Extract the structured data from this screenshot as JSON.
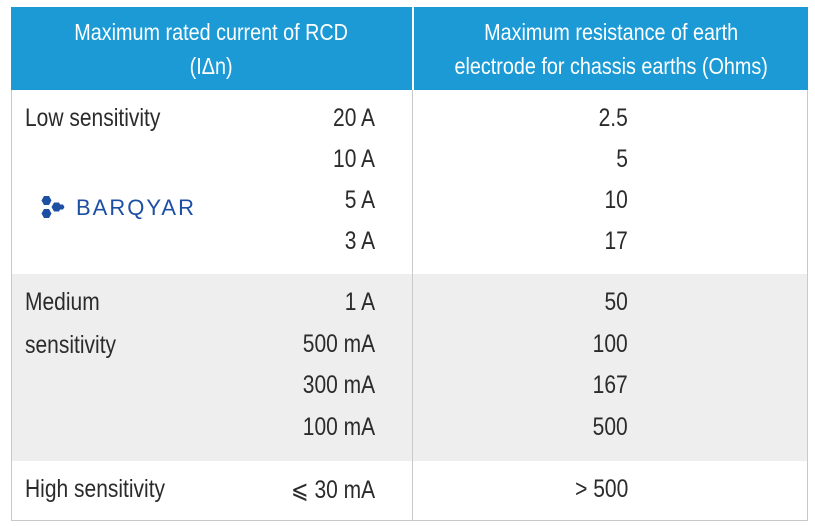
{
  "header": {
    "col1": "Maximum rated current of RCD (IΔn)",
    "col1_line1": "Maximum rated current of RCD",
    "col1_line2": "(IΔn)",
    "col2_line1": "Maximum resistance of earth",
    "col2_line2": "electrode for chassis earths (Ohms)"
  },
  "rows": [
    {
      "sensitivity_line1": "Low sensitivity",
      "sensitivity_line2": "",
      "items": [
        {
          "current": "20 A",
          "resistance": "2.5"
        },
        {
          "current": "10 A",
          "resistance": "5"
        },
        {
          "current": "5 A",
          "resistance": "10"
        },
        {
          "current": "3 A",
          "resistance": "17"
        }
      ]
    },
    {
      "sensitivity_line1": "Medium",
      "sensitivity_line2": "sensitivity",
      "items": [
        {
          "current": "1 A",
          "resistance": "50"
        },
        {
          "current": "500 mA",
          "resistance": "100"
        },
        {
          "current": "300 mA",
          "resistance": "167"
        },
        {
          "current": "100 mA",
          "resistance": "500"
        }
      ]
    },
    {
      "sensitivity_line1": "High sensitivity",
      "sensitivity_line2": "",
      "items": [
        {
          "current": "⩽ 30 mA",
          "resistance": "> 500"
        }
      ]
    }
  ],
  "logo": {
    "text": "BARQYAR",
    "icon": "hexagon-cluster-icon",
    "color": "#1d4fa3"
  },
  "colors": {
    "header_bg": "#1b9ad6",
    "header_text": "#ffffff",
    "shaded_row": "#eeeeee",
    "grid": "#c9c9c9"
  }
}
